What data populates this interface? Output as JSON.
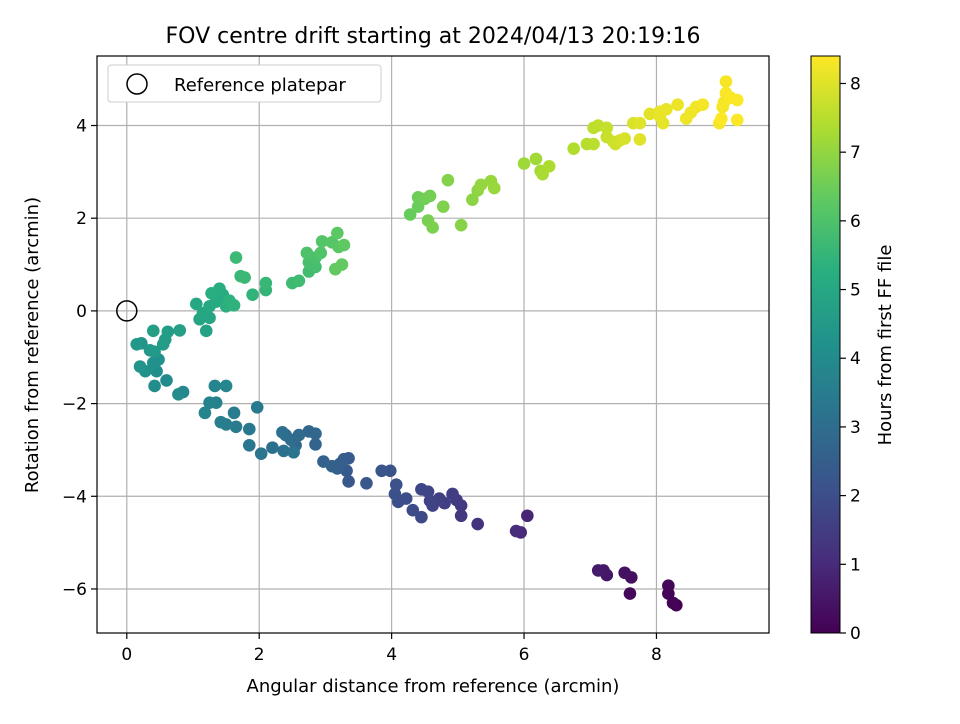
{
  "chart_data": {
    "type": "scatter",
    "title": "FOV centre drift starting at 2024/04/13 20:19:16",
    "xlabel": "Angular distance from reference (arcmin)",
    "ylabel": "Rotation from reference (arcmin)",
    "xlim": [
      -0.45,
      9.7
    ],
    "ylim": [
      -6.95,
      5.5
    ],
    "xticks": [
      0,
      2,
      4,
      6,
      8
    ],
    "yticks": [
      -6,
      -4,
      -2,
      0,
      2,
      4
    ],
    "grid": true,
    "legend": {
      "location": "top-left",
      "entries": [
        "Reference platepar"
      ]
    },
    "reference_point": {
      "x": 0,
      "y": 0,
      "label": "Reference platepar"
    },
    "colorbar": {
      "label": "Hours from first FF file",
      "colormap": "viridis",
      "range": [
        0,
        8.4
      ],
      "ticks": [
        0,
        1,
        2,
        3,
        4,
        5,
        6,
        7,
        8
      ]
    },
    "series": [
      {
        "color_value": "hours",
        "points": [
          [
            8.3,
            -6.35,
            0.0
          ],
          [
            8.25,
            -6.3,
            0.04
          ],
          [
            8.18,
            -6.1,
            0.08
          ],
          [
            8.18,
            -5.93,
            0.12
          ],
          [
            7.6,
            -6.1,
            0.2
          ],
          [
            7.62,
            -5.75,
            0.3
          ],
          [
            7.52,
            -5.65,
            0.4
          ],
          [
            7.25,
            -5.7,
            0.5
          ],
          [
            7.2,
            -5.6,
            0.55
          ],
          [
            7.12,
            -5.6,
            0.6
          ],
          [
            6.05,
            -4.42,
            0.9
          ],
          [
            5.95,
            -4.78,
            1.0
          ],
          [
            5.88,
            -4.75,
            1.05
          ],
          [
            5.3,
            -4.6,
            1.2
          ],
          [
            5.05,
            -4.42,
            1.35
          ],
          [
            5.05,
            -4.2,
            1.4
          ],
          [
            4.98,
            -4.08,
            1.45
          ],
          [
            4.92,
            -3.95,
            1.5
          ],
          [
            4.8,
            -4.15,
            1.55
          ],
          [
            4.72,
            -4.05,
            1.6
          ],
          [
            4.62,
            -4.2,
            1.65
          ],
          [
            4.58,
            -4.1,
            1.7
          ],
          [
            4.55,
            -3.9,
            1.75
          ],
          [
            4.45,
            -3.85,
            1.8
          ],
          [
            4.45,
            -4.45,
            1.85
          ],
          [
            4.32,
            -4.3,
            1.9
          ],
          [
            4.22,
            -4.05,
            1.95
          ],
          [
            4.1,
            -4.12,
            2.0
          ],
          [
            4.05,
            -3.95,
            2.05
          ],
          [
            4.07,
            -3.75,
            2.1
          ],
          [
            3.98,
            -3.45,
            2.15
          ],
          [
            3.85,
            -3.45,
            2.2
          ],
          [
            3.62,
            -3.72,
            2.25
          ],
          [
            3.35,
            -3.68,
            2.3
          ],
          [
            3.32,
            -3.45,
            2.35
          ],
          [
            3.35,
            -3.18,
            2.4
          ],
          [
            3.28,
            -3.2,
            2.45
          ],
          [
            3.22,
            -3.3,
            2.5
          ],
          [
            3.18,
            -3.4,
            2.55
          ],
          [
            3.1,
            -3.35,
            2.6
          ],
          [
            2.97,
            -3.25,
            2.65
          ],
          [
            2.85,
            -2.88,
            2.7
          ],
          [
            2.85,
            -2.65,
            2.75
          ],
          [
            2.75,
            -2.6,
            2.8
          ],
          [
            2.55,
            -2.9,
            2.85
          ],
          [
            2.6,
            -2.68,
            2.9
          ],
          [
            2.48,
            -2.78,
            2.95
          ],
          [
            2.4,
            -2.68,
            3.0
          ],
          [
            2.35,
            -2.62,
            3.05
          ],
          [
            2.2,
            -2.95,
            3.1
          ],
          [
            2.37,
            -3.02,
            3.15
          ],
          [
            2.52,
            -3.05,
            3.2
          ],
          [
            2.03,
            -3.08,
            3.25
          ],
          [
            1.85,
            -2.9,
            3.3
          ],
          [
            1.85,
            -2.55,
            3.35
          ],
          [
            1.97,
            -2.08,
            3.4
          ],
          [
            1.65,
            -2.5,
            3.45
          ],
          [
            1.62,
            -2.2,
            3.5
          ],
          [
            1.5,
            -2.45,
            3.55
          ],
          [
            1.42,
            -2.4,
            3.6
          ],
          [
            1.35,
            -1.98,
            3.65
          ],
          [
            1.25,
            -1.98,
            3.7
          ],
          [
            1.18,
            -2.2,
            3.75
          ],
          [
            1.33,
            -1.62,
            3.8
          ],
          [
            1.5,
            -1.62,
            3.85
          ],
          [
            0.85,
            -1.75,
            3.9
          ],
          [
            0.78,
            -1.8,
            3.95
          ],
          [
            0.6,
            -1.5,
            4.0
          ],
          [
            0.42,
            -1.62,
            4.05
          ],
          [
            0.45,
            -1.3,
            4.1
          ],
          [
            0.48,
            -1.05,
            4.15
          ],
          [
            0.4,
            -1.12,
            4.2
          ],
          [
            0.28,
            -1.3,
            4.25
          ],
          [
            0.2,
            -1.2,
            4.3
          ],
          [
            0.22,
            -0.7,
            4.35
          ],
          [
            0.15,
            -0.72,
            4.4
          ],
          [
            0.35,
            -0.85,
            4.45
          ],
          [
            0.42,
            -0.88,
            4.5
          ],
          [
            0.55,
            -0.72,
            4.55
          ],
          [
            0.58,
            -0.62,
            4.6
          ],
          [
            0.62,
            -0.45,
            4.65
          ],
          [
            0.4,
            -0.43,
            4.7
          ],
          [
            0.8,
            -0.42,
            4.75
          ],
          [
            1.2,
            -0.43,
            4.8
          ],
          [
            1.1,
            -0.18,
            4.85
          ],
          [
            1.25,
            -0.15,
            4.9
          ],
          [
            1.15,
            -0.05,
            4.95
          ],
          [
            1.05,
            0.15,
            5.0
          ],
          [
            1.25,
            0.1,
            5.05
          ],
          [
            1.35,
            0.2,
            5.1
          ],
          [
            1.45,
            0.35,
            5.15
          ],
          [
            1.4,
            0.48,
            5.2
          ],
          [
            1.28,
            0.38,
            5.25
          ],
          [
            1.5,
            0.1,
            5.3
          ],
          [
            1.55,
            0.22,
            5.35
          ],
          [
            1.62,
            0.12,
            5.4
          ],
          [
            1.9,
            0.35,
            5.45
          ],
          [
            2.1,
            0.45,
            5.5
          ],
          [
            2.1,
            0.6,
            5.55
          ],
          [
            1.72,
            0.75,
            5.6
          ],
          [
            1.78,
            0.72,
            5.62
          ],
          [
            1.65,
            1.15,
            5.65
          ],
          [
            2.5,
            0.6,
            5.7
          ],
          [
            2.6,
            0.65,
            5.75
          ],
          [
            2.75,
            0.85,
            5.8
          ],
          [
            2.85,
            0.95,
            5.85
          ],
          [
            2.75,
            1.05,
            5.9
          ],
          [
            2.85,
            1.15,
            5.95
          ],
          [
            2.72,
            1.25,
            6.0
          ],
          [
            2.93,
            1.25,
            6.05
          ],
          [
            2.95,
            1.5,
            6.1
          ],
          [
            3.1,
            1.48,
            6.15
          ],
          [
            3.2,
            1.38,
            6.2
          ],
          [
            3.18,
            1.68,
            6.25
          ],
          [
            3.28,
            1.42,
            6.3
          ],
          [
            3.15,
            0.9,
            6.32
          ],
          [
            3.25,
            1.0,
            6.35
          ],
          [
            4.28,
            2.08,
            6.4
          ],
          [
            4.4,
            2.25,
            6.45
          ],
          [
            4.4,
            2.45,
            6.5
          ],
          [
            4.5,
            2.42,
            6.55
          ],
          [
            4.58,
            2.48,
            6.6
          ],
          [
            4.55,
            1.95,
            6.65
          ],
          [
            4.62,
            1.8,
            6.7
          ],
          [
            4.78,
            2.25,
            6.75
          ],
          [
            4.85,
            2.82,
            6.8
          ],
          [
            5.05,
            1.85,
            6.85
          ],
          [
            5.22,
            2.4,
            6.9
          ],
          [
            5.3,
            2.6,
            6.95
          ],
          [
            5.35,
            2.72,
            7.0
          ],
          [
            5.5,
            2.8,
            7.05
          ],
          [
            5.55,
            2.65,
            7.1
          ],
          [
            6.0,
            3.18,
            7.15
          ],
          [
            6.18,
            3.28,
            7.2
          ],
          [
            6.25,
            3.02,
            7.25
          ],
          [
            6.28,
            2.95,
            7.3
          ],
          [
            6.38,
            3.12,
            7.35
          ],
          [
            6.75,
            3.5,
            7.4
          ],
          [
            6.95,
            3.6,
            7.45
          ],
          [
            7.05,
            3.6,
            7.5
          ],
          [
            7.05,
            3.95,
            7.55
          ],
          [
            7.12,
            4.0,
            7.6
          ],
          [
            7.25,
            3.95,
            7.65
          ],
          [
            7.25,
            3.75,
            7.7
          ],
          [
            7.35,
            3.65,
            7.75
          ],
          [
            7.38,
            3.6,
            7.8
          ],
          [
            7.45,
            3.68,
            7.85
          ],
          [
            7.52,
            3.72,
            7.9
          ],
          [
            7.65,
            4.05,
            7.95
          ],
          [
            7.75,
            4.05,
            8.0
          ],
          [
            7.75,
            3.7,
            8.02
          ],
          [
            7.9,
            4.25,
            8.05
          ],
          [
            8.05,
            4.2,
            8.08
          ],
          [
            8.1,
            4.05,
            8.1
          ],
          [
            8.15,
            4.35,
            8.12
          ],
          [
            8.05,
            4.3,
            8.15
          ],
          [
            8.32,
            4.45,
            8.18
          ],
          [
            8.45,
            4.15,
            8.2
          ],
          [
            8.52,
            4.28,
            8.22
          ],
          [
            8.6,
            4.4,
            8.24
          ],
          [
            8.7,
            4.45,
            8.26
          ],
          [
            8.95,
            4.05,
            8.28
          ],
          [
            9.0,
            4.4,
            8.3
          ],
          [
            9.02,
            4.5,
            8.32
          ],
          [
            9.05,
            4.95,
            8.34
          ],
          [
            9.05,
            4.7,
            8.35
          ],
          [
            9.12,
            4.6,
            8.36
          ],
          [
            9.22,
            4.55,
            8.37
          ],
          [
            9.22,
            4.12,
            8.38
          ],
          [
            8.98,
            4.15,
            8.39
          ]
        ]
      }
    ]
  }
}
